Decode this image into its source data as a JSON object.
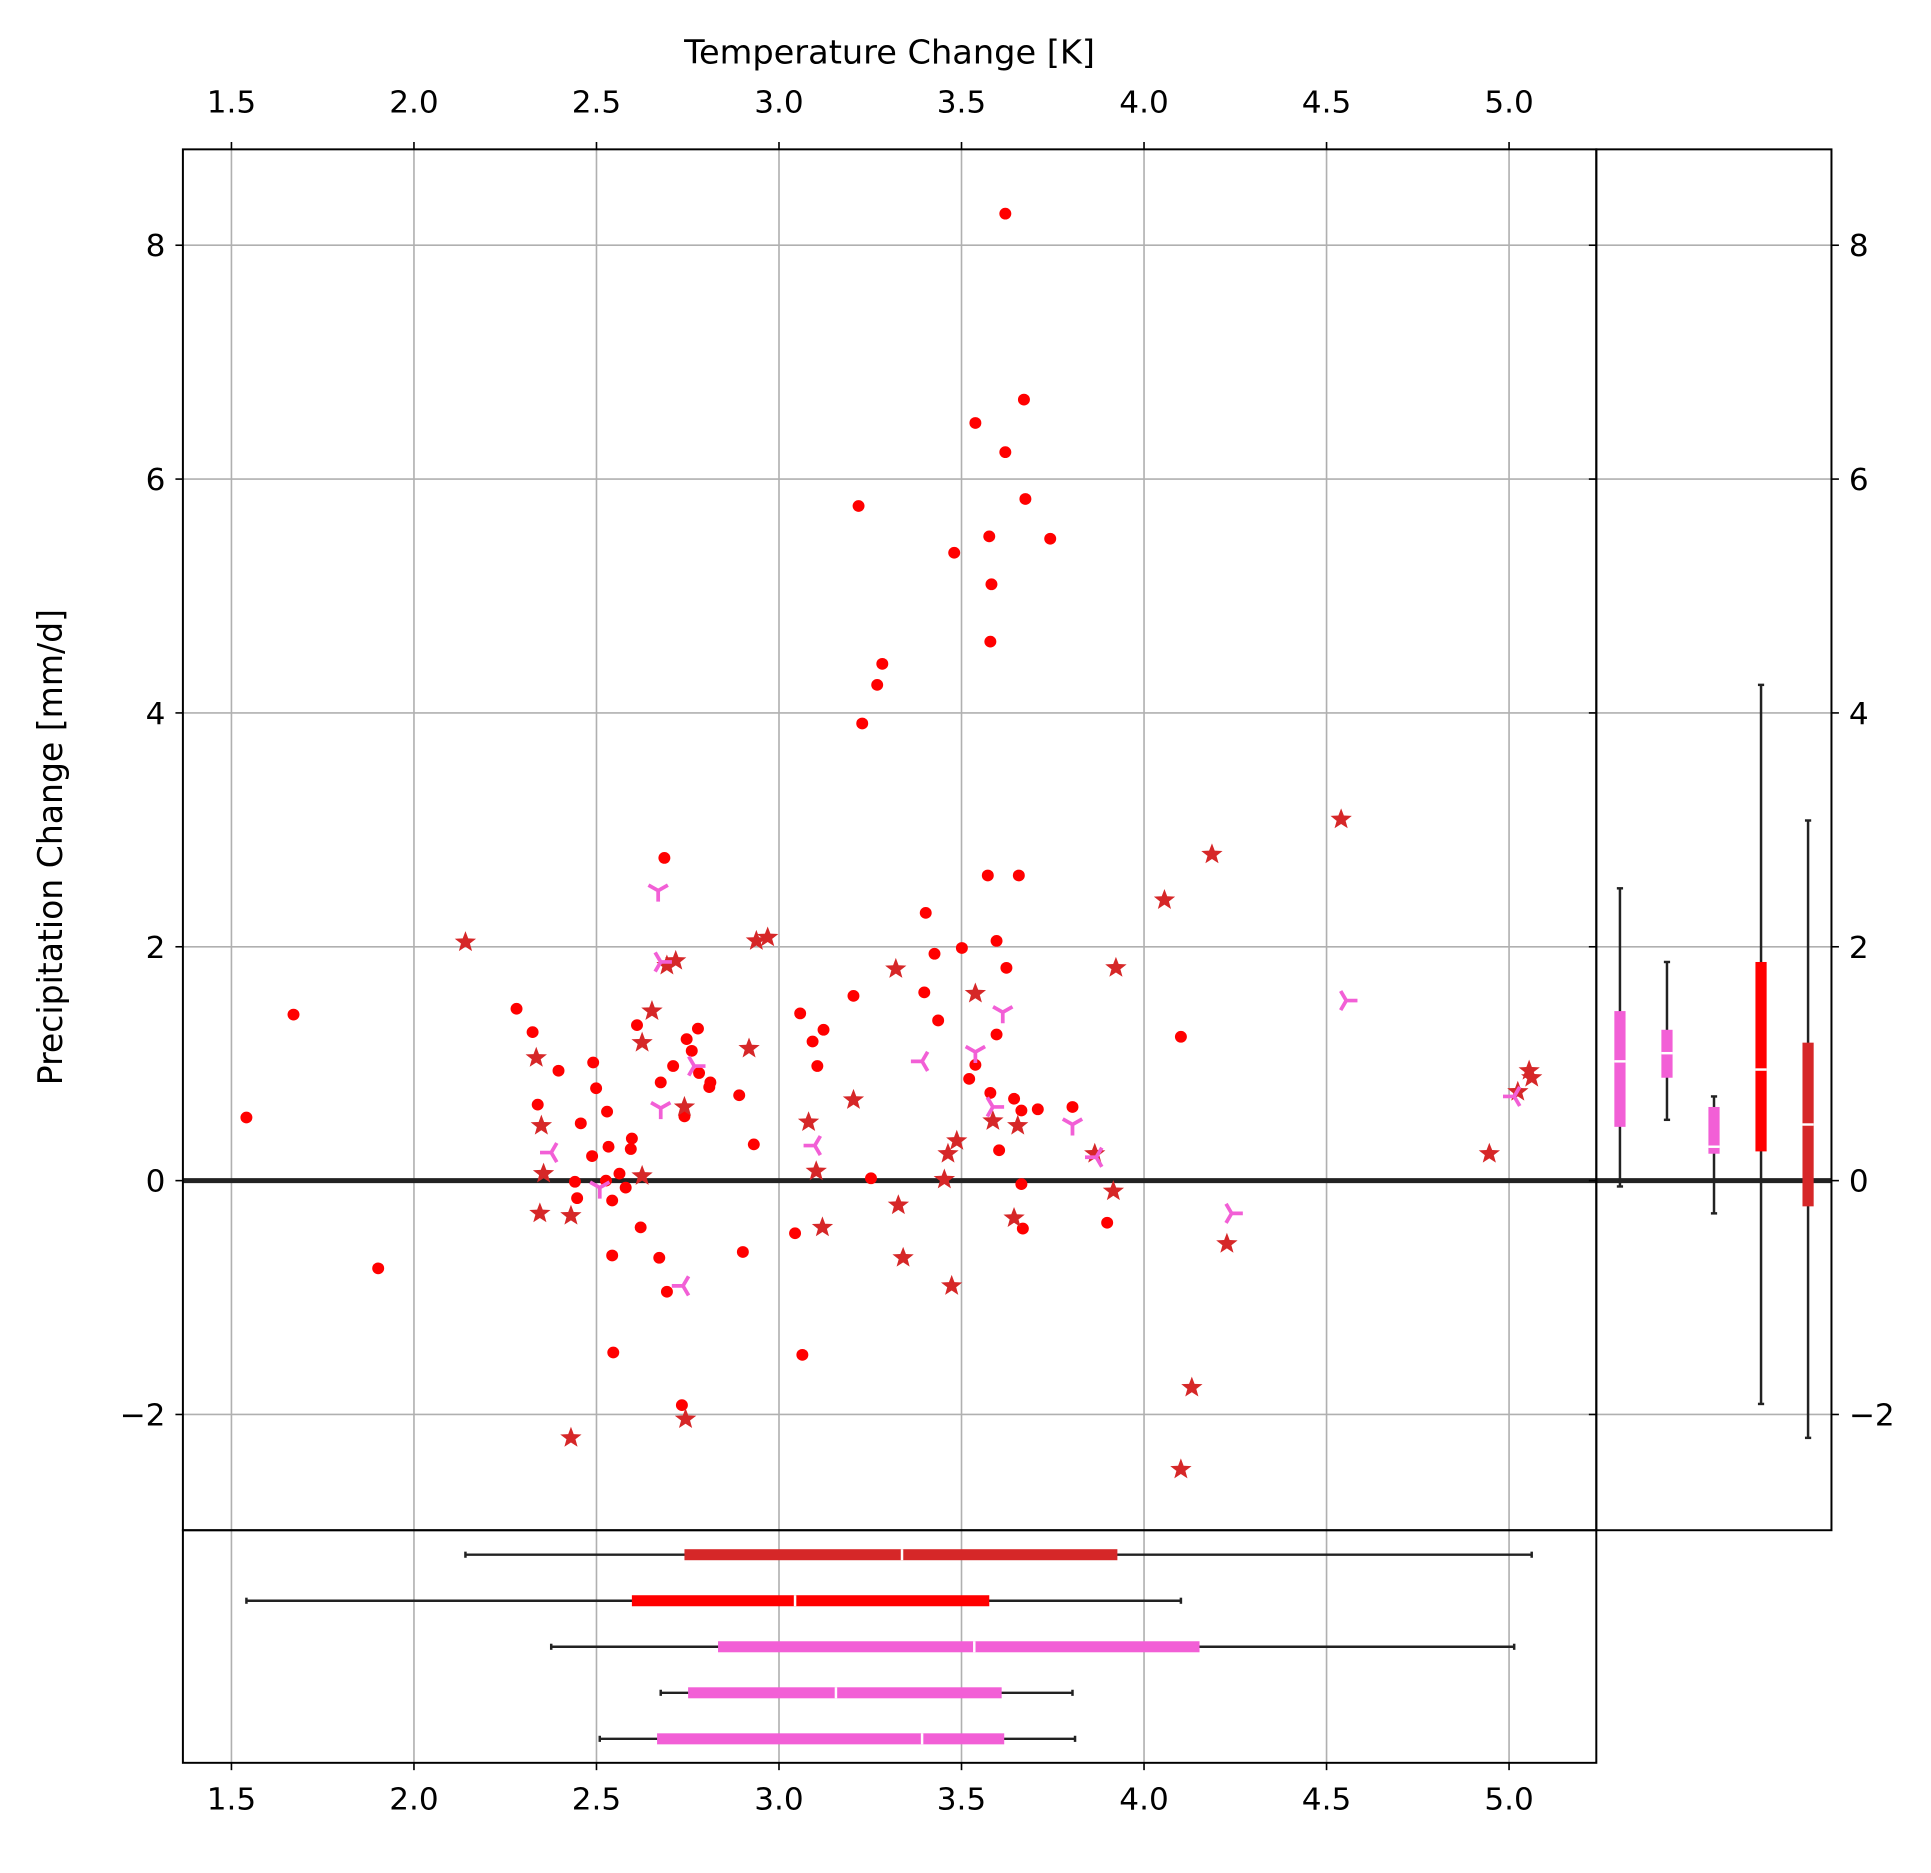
{
  "chart_data": {
    "type": "scatter",
    "xlabel": "Temperature Change [K]",
    "ylabel": "Precipitation Change [mm/d]",
    "xlim": [
      1.367,
      5.239
    ],
    "ylim": [
      -2.99,
      8.82
    ],
    "xticks": [
      1.5,
      2.0,
      2.5,
      3.0,
      3.5,
      4.0,
      4.5,
      5.0
    ],
    "xtick_labels": [
      "1.5",
      "2.0",
      "2.5",
      "3.0",
      "3.5",
      "4.0",
      "4.5",
      "5.0"
    ],
    "yticks": [
      -2,
      0,
      2,
      4,
      6,
      8
    ],
    "ytick_labels": [
      "−2",
      "0",
      "2",
      "4",
      "6",
      "8"
    ],
    "grid": true,
    "hline": 0,
    "colors": {
      "red": "#ff0000",
      "darkred": "#d62728",
      "pink": "#f25fd6",
      "whisker": "#222222",
      "grid": "#b0b0b0"
    },
    "series": [
      {
        "name": "dots",
        "marker": "circle",
        "color": "#ff0000",
        "points": [
          [
            1.541,
            0.54
          ],
          [
            1.67,
            1.42
          ],
          [
            1.902,
            -0.75
          ],
          [
            2.281,
            1.47
          ],
          [
            2.325,
            1.27
          ],
          [
            2.339,
            0.65
          ],
          [
            2.396,
            0.94
          ],
          [
            2.441,
            -0.01
          ],
          [
            2.447,
            -0.15
          ],
          [
            2.457,
            0.49
          ],
          [
            2.488,
            0.21
          ],
          [
            2.491,
            1.01
          ],
          [
            2.499,
            0.79
          ],
          [
            2.526,
            0.0
          ],
          [
            2.529,
            0.59
          ],
          [
            2.533,
            0.29
          ],
          [
            2.543,
            -0.17
          ],
          [
            2.543,
            -0.64
          ],
          [
            2.546,
            -1.47
          ],
          [
            2.563,
            0.06
          ],
          [
            2.58,
            -0.06
          ],
          [
            2.594,
            0.27
          ],
          [
            2.597,
            0.36
          ],
          [
            2.611,
            1.33
          ],
          [
            2.621,
            -0.4
          ],
          [
            2.672,
            -0.66
          ],
          [
            2.676,
            0.84
          ],
          [
            2.686,
            2.76
          ],
          [
            2.693,
            -0.95
          ],
          [
            2.71,
            0.98
          ],
          [
            2.734,
            -1.92
          ],
          [
            2.741,
            0.55
          ],
          [
            2.747,
            1.21
          ],
          [
            2.761,
            1.11
          ],
          [
            2.778,
            1.3
          ],
          [
            2.781,
            0.92
          ],
          [
            2.809,
            0.8
          ],
          [
            2.812,
            0.84
          ],
          [
            2.891,
            0.73
          ],
          [
            2.901,
            -0.61
          ],
          [
            2.931,
            0.31
          ],
          [
            3.044,
            -0.45
          ],
          [
            3.058,
            1.43
          ],
          [
            3.064,
            -1.49
          ],
          [
            3.092,
            1.19
          ],
          [
            3.105,
            0.98
          ],
          [
            3.122,
            1.29
          ],
          [
            3.204,
            1.58
          ],
          [
            3.218,
            5.77
          ],
          [
            3.228,
            3.91
          ],
          [
            3.252,
            0.02
          ],
          [
            3.269,
            4.24
          ],
          [
            3.283,
            4.42
          ],
          [
            3.402,
            2.29
          ],
          [
            3.398,
            1.61
          ],
          [
            3.426,
            1.94
          ],
          [
            3.436,
            1.37
          ],
          [
            3.48,
            5.37
          ],
          [
            3.501,
            1.99
          ],
          [
            3.521,
            0.87
          ],
          [
            3.538,
            0.99
          ],
          [
            3.538,
            6.48
          ],
          [
            3.572,
            2.61
          ],
          [
            3.576,
            5.51
          ],
          [
            3.582,
            5.1
          ],
          [
            3.579,
            4.61
          ],
          [
            3.579,
            0.75
          ],
          [
            3.596,
            2.05
          ],
          [
            3.603,
            0.26
          ],
          [
            3.596,
            1.25
          ],
          [
            3.62,
            8.27
          ],
          [
            3.62,
            6.23
          ],
          [
            3.623,
            1.82
          ],
          [
            3.644,
            0.7
          ],
          [
            3.657,
            2.61
          ],
          [
            3.664,
            0.6
          ],
          [
            3.664,
            -0.03
          ],
          [
            3.671,
            6.68
          ],
          [
            3.675,
            5.83
          ],
          [
            3.668,
            -0.41
          ],
          [
            3.709,
            0.61
          ],
          [
            3.743,
            5.49
          ],
          [
            3.804,
            0.63
          ],
          [
            3.899,
            -0.36
          ],
          [
            4.101,
            1.23
          ]
        ]
      },
      {
        "name": "stars",
        "marker": "star",
        "color": "#d62728",
        "points": [
          [
            2.141,
            2.04
          ],
          [
            2.335,
            1.05
          ],
          [
            2.349,
            0.47
          ],
          [
            2.355,
            0.06
          ],
          [
            2.345,
            -0.28
          ],
          [
            2.43,
            -0.3
          ],
          [
            2.43,
            -2.2
          ],
          [
            2.625,
            1.18
          ],
          [
            2.625,
            0.04
          ],
          [
            2.652,
            1.45
          ],
          [
            2.693,
            1.84
          ],
          [
            2.717,
            1.88
          ],
          [
            2.741,
            0.63
          ],
          [
            2.744,
            -2.04
          ],
          [
            2.918,
            1.13
          ],
          [
            2.938,
            2.05
          ],
          [
            2.969,
            2.08
          ],
          [
            3.081,
            0.5
          ],
          [
            3.102,
            0.08
          ],
          [
            3.119,
            -0.4
          ],
          [
            3.204,
            0.69
          ],
          [
            3.32,
            1.81
          ],
          [
            3.327,
            -0.21
          ],
          [
            3.34,
            -0.66
          ],
          [
            3.453,
            0.01
          ],
          [
            3.463,
            0.23
          ],
          [
            3.473,
            -0.9
          ],
          [
            3.487,
            0.34
          ],
          [
            3.538,
            1.6
          ],
          [
            3.586,
            0.51
          ],
          [
            3.644,
            -0.32
          ],
          [
            3.654,
            0.47
          ],
          [
            3.865,
            0.23
          ],
          [
            3.916,
            -0.09
          ],
          [
            3.923,
            1.82
          ],
          [
            4.056,
            2.4
          ],
          [
            4.101,
            -2.47
          ],
          [
            4.131,
            -1.77
          ],
          [
            4.186,
            2.79
          ],
          [
            4.227,
            -0.54
          ],
          [
            4.54,
            3.09
          ],
          [
            4.946,
            0.23
          ],
          [
            5.024,
            0.76
          ],
          [
            5.055,
            0.94
          ],
          [
            5.062,
            0.88
          ]
        ]
      },
      {
        "name": "tri-a",
        "marker": "tri_down",
        "color": "#f25fd6",
        "points": [
          [
            2.669,
            2.48
          ],
          [
            2.676,
            0.62
          ],
          [
            3.538,
            1.1
          ],
          [
            3.613,
            1.44
          ],
          [
            3.804,
            0.48
          ],
          [
            2.509,
            -0.06
          ]
        ]
      },
      {
        "name": "tri-b",
        "marker": "tri_left",
        "color": "#f25fd6",
        "points": [
          [
            2.376,
            0.24
          ],
          [
            2.737,
            -0.9
          ],
          [
            3.098,
            0.3
          ],
          [
            3.392,
            1.02
          ],
          [
            3.869,
            0.2
          ],
          [
            5.014,
            0.72
          ]
        ]
      },
      {
        "name": "tri-c",
        "marker": "tri_right",
        "color": "#f25fd6",
        "points": [
          [
            2.676,
            1.87
          ],
          [
            2.768,
            0.98
          ],
          [
            3.586,
            0.63
          ],
          [
            4.24,
            -0.28
          ],
          [
            4.554,
            1.54
          ]
        ]
      }
    ],
    "right_boxplots": [
      {
        "color": "#f25fd6",
        "whislo": -0.05,
        "q1": 0.46,
        "med": 1.02,
        "q3": 1.45,
        "whishi": 2.5
      },
      {
        "color": "#f25fd6",
        "whislo": 0.52,
        "q1": 0.88,
        "med": 1.09,
        "q3": 1.29,
        "whishi": 1.87
      },
      {
        "color": "#f25fd6",
        "whislo": -0.28,
        "q1": 0.23,
        "med": 0.29,
        "q3": 0.63,
        "whishi": 0.72
      },
      {
        "color": "#ff0000",
        "whislo": -1.91,
        "q1": 0.25,
        "med": 0.95,
        "q3": 1.87,
        "whishi": 4.24
      },
      {
        "color": "#d62728",
        "whislo": -2.2,
        "q1": -0.22,
        "med": 0.48,
        "q3": 1.18,
        "whishi": 3.08
      }
    ],
    "bottom_boxplots": [
      {
        "color": "#d62728",
        "whislo": 2.141,
        "q1": 2.741,
        "med": 3.337,
        "q3": 3.927,
        "whishi": 5.062
      },
      {
        "color": "#ff0000",
        "whislo": 1.541,
        "q1": 2.597,
        "med": 3.044,
        "q3": 3.576,
        "whishi": 4.101
      },
      {
        "color": "#f25fd6",
        "whislo": 2.376,
        "q1": 2.833,
        "med": 3.535,
        "q3": 4.152,
        "whishi": 5.014
      },
      {
        "color": "#f25fd6",
        "whislo": 2.676,
        "q1": 2.751,
        "med": 3.156,
        "q3": 3.61,
        "whishi": 3.804
      },
      {
        "color": "#f25fd6",
        "whislo": 2.509,
        "q1": 2.666,
        "med": 3.392,
        "q3": 3.617,
        "whishi": 3.811
      }
    ]
  }
}
